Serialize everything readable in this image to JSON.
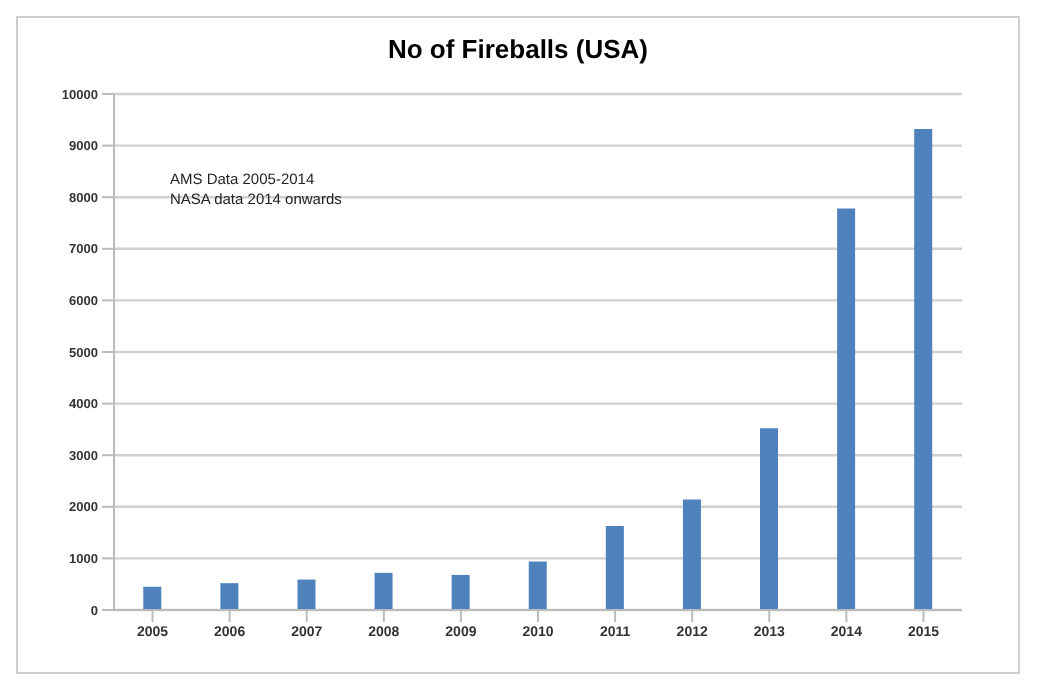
{
  "chart_data": {
    "type": "bar",
    "title": "No of Fireballs (USA)",
    "categories": [
      "2005",
      "2006",
      "2007",
      "2008",
      "2009",
      "2010",
      "2011",
      "2012",
      "2013",
      "2014",
      "2015"
    ],
    "values": [
      450,
      520,
      590,
      720,
      680,
      940,
      1630,
      2140,
      3520,
      7780,
      9320
    ],
    "color": "#4f81bd",
    "ylim": [
      0,
      10000
    ],
    "yticks": [
      0,
      1000,
      2000,
      3000,
      4000,
      5000,
      6000,
      7000,
      8000,
      9000,
      10000
    ],
    "grid": "y",
    "annotations": [
      "AMS Data 2005-2014",
      "NASA data 2014 onwards"
    ]
  }
}
